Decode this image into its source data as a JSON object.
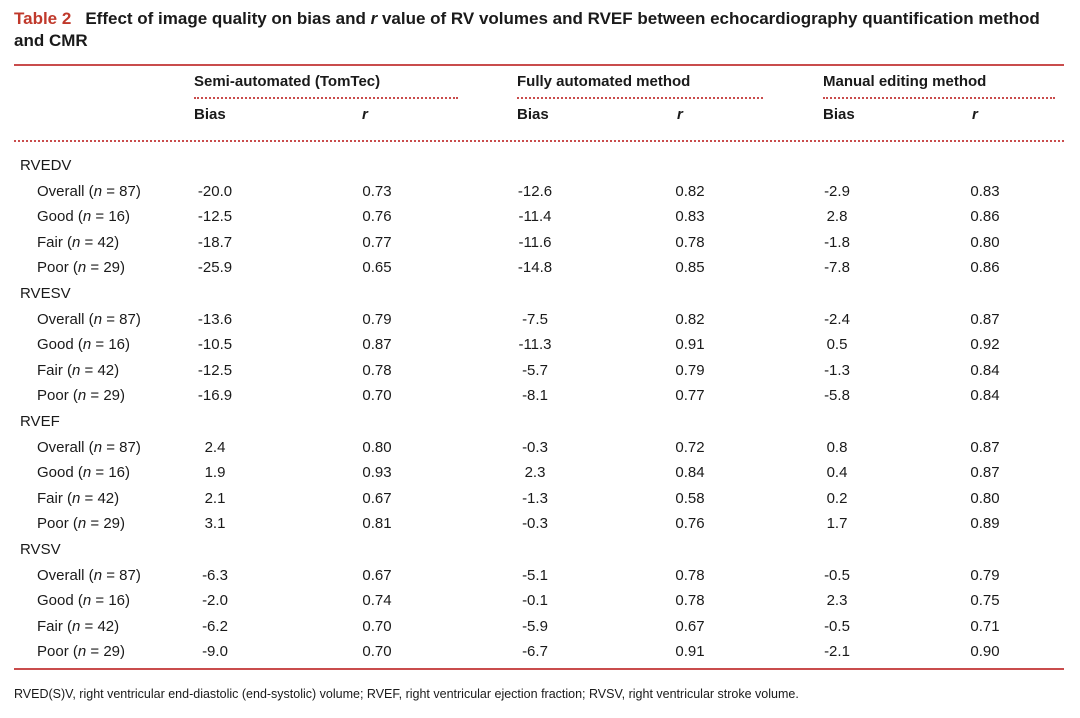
{
  "caption": {
    "label": "Table 2",
    "before_r": "Effect of image quality on bias and",
    "r": "r",
    "after_r": "value of RV volumes and RVEF between echocardiography quantification method and CMR"
  },
  "groups": [
    {
      "name": "Semi-automated (TomTec)",
      "bias": "Bias",
      "r": "r"
    },
    {
      "name": "Fully automated method",
      "bias": "Bias",
      "r": "r"
    },
    {
      "name": "Manual editing method",
      "bias": "Bias",
      "r": "r"
    }
  ],
  "sections": [
    {
      "name": "RVEDV",
      "rows": [
        {
          "q": "Overall",
          "n": "87",
          "v": [
            "-20.0",
            "0.73",
            "-12.6",
            "0.82",
            "-2.9",
            "0.83"
          ]
        },
        {
          "q": "Good",
          "n": "16",
          "v": [
            "-12.5",
            "0.76",
            "-11.4",
            "0.83",
            "2.8",
            "0.86"
          ]
        },
        {
          "q": "Fair",
          "n": "42",
          "v": [
            "-18.7",
            "0.77",
            "-11.6",
            "0.78",
            "-1.8",
            "0.80"
          ]
        },
        {
          "q": "Poor",
          "n": "29",
          "v": [
            "-25.9",
            "0.65",
            "-14.8",
            "0.85",
            "-7.8",
            "0.86"
          ]
        }
      ]
    },
    {
      "name": "RVESV",
      "rows": [
        {
          "q": "Overall",
          "n": "87",
          "v": [
            "-13.6",
            "0.79",
            "-7.5",
            "0.82",
            "-2.4",
            "0.87"
          ]
        },
        {
          "q": "Good",
          "n": "16",
          "v": [
            "-10.5",
            "0.87",
            "-11.3",
            "0.91",
            "0.5",
            "0.92"
          ]
        },
        {
          "q": "Fair",
          "n": "42",
          "v": [
            "-12.5",
            "0.78",
            "-5.7",
            "0.79",
            "-1.3",
            "0.84"
          ]
        },
        {
          "q": "Poor",
          "n": "29",
          "v": [
            "-16.9",
            "0.70",
            "-8.1",
            "0.77",
            "-5.8",
            "0.84"
          ]
        }
      ]
    },
    {
      "name": "RVEF",
      "rows": [
        {
          "q": "Overall",
          "n": "87",
          "v": [
            "2.4",
            "0.80",
            "-0.3",
            "0.72",
            "0.8",
            "0.87"
          ]
        },
        {
          "q": "Good",
          "n": "16",
          "v": [
            "1.9",
            "0.93",
            "2.3",
            "0.84",
            "0.4",
            "0.87"
          ]
        },
        {
          "q": "Fair",
          "n": "42",
          "v": [
            "2.1",
            "0.67",
            "-1.3",
            "0.58",
            "0.2",
            "0.80"
          ]
        },
        {
          "q": "Poor",
          "n": "29",
          "v": [
            "3.1",
            "0.81",
            "-0.3",
            "0.76",
            "1.7",
            "0.89"
          ]
        }
      ]
    },
    {
      "name": "RVSV",
      "rows": [
        {
          "q": "Overall",
          "n": "87",
          "v": [
            "-6.3",
            "0.67",
            "-5.1",
            "0.78",
            "-0.5",
            "0.79"
          ]
        },
        {
          "q": "Good",
          "n": "16",
          "v": [
            "-2.0",
            "0.74",
            "-0.1",
            "0.78",
            "2.3",
            "0.75"
          ]
        },
        {
          "q": "Fair",
          "n": "42",
          "v": [
            "-6.2",
            "0.70",
            "-5.9",
            "0.67",
            "-0.5",
            "0.71"
          ]
        },
        {
          "q": "Poor",
          "n": "29",
          "v": [
            "-9.0",
            "0.70",
            "-6.7",
            "0.91",
            "-2.1",
            "0.90"
          ]
        }
      ]
    }
  ],
  "footnote": "RVED(S)V, right ventricular end-diastolic (end-systolic) volume; RVEF, right ventricular ejection fraction; RVSV, right ventricular stroke volume.",
  "colors": {
    "accent": "#c0392b",
    "rule": "#c94c4c"
  }
}
